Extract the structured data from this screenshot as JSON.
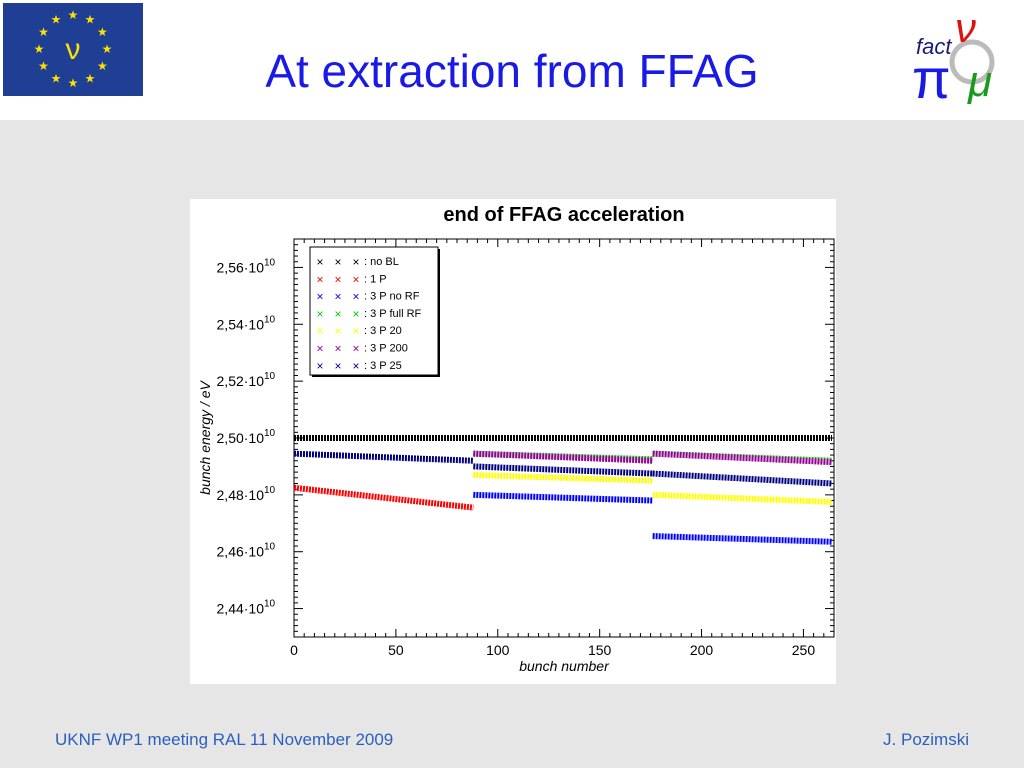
{
  "slide": {
    "title": "At extraction from FFAG",
    "footer_left": "UKNF WP1 meeting RAL 11 November 2009",
    "footer_right": "J. Pozimski"
  },
  "eu_logo": {
    "symbol": "ν",
    "colors": {
      "bg": "#1f3f95",
      "stars": "#ffe000"
    }
  },
  "fact_logo": {
    "text": "fact",
    "symbols": [
      "ν",
      "π",
      "μ"
    ],
    "colors": {
      "nu": "#e01010",
      "pi": "#1a1ae6",
      "mu": "#1a9a1a"
    }
  },
  "chart_data": {
    "type": "scatter",
    "title": "end of FFAG acceleration",
    "xlabel": "bunch number",
    "ylabel": "bunch energy / eV",
    "xlim": [
      0,
      265
    ],
    "ylim": [
      24300000000.0,
      25700000000.0
    ],
    "xticks": [
      0,
      50,
      100,
      150,
      200,
      250
    ],
    "xtick_labels": [
      "0",
      "50",
      "100",
      "150",
      "200",
      "250"
    ],
    "yticks": [
      24400000000.0,
      24600000000.0,
      24800000000.0,
      25000000000.0,
      25200000000.0,
      25400000000.0,
      25600000000.0
    ],
    "ytick_labels": [
      {
        "mant": "2,44·10",
        "exp": "10"
      },
      {
        "mant": "2,46·10",
        "exp": "10"
      },
      {
        "mant": "2,48·10",
        "exp": "10"
      },
      {
        "mant": "2,50·10",
        "exp": "10"
      },
      {
        "mant": "2,52·10",
        "exp": "10"
      },
      {
        "mant": "2,54·10",
        "exp": "10"
      },
      {
        "mant": "2,56·10",
        "exp": "10"
      }
    ],
    "legend_position": "top-left",
    "series": [
      {
        "name": ": no BL",
        "color": "#000000",
        "segments": [
          [
            0,
            264,
            25000000000.0,
            25000000000.0
          ]
        ]
      },
      {
        "name": ": 1 P",
        "color": "#ff0000",
        "segments": [
          [
            0,
            88,
            24825000000.0,
            24755000000.0
          ]
        ]
      },
      {
        "name": ": 3 P no RF",
        "color": "#0000ff",
        "segments": [
          [
            88,
            176,
            24800000000.0,
            24780000000.0
          ],
          [
            176,
            264,
            24655000000.0,
            24635000000.0
          ]
        ]
      },
      {
        "name": ": 3 P full RF",
        "color": "#00cc00",
        "segments": [
          [
            88,
            176,
            24945000000.0,
            24925000000.0
          ],
          [
            176,
            264,
            24945000000.0,
            24920000000.0
          ]
        ]
      },
      {
        "name": ": 3 P 20",
        "color": "#ffff00",
        "segments": [
          [
            88,
            176,
            24870000000.0,
            24850000000.0
          ],
          [
            176,
            264,
            24800000000.0,
            24775000000.0
          ]
        ]
      },
      {
        "name": ": 3 P 200",
        "color": "#990099",
        "segments": [
          [
            88,
            176,
            24945000000.0,
            24920000000.0
          ],
          [
            176,
            264,
            24945000000.0,
            24915000000.0
          ]
        ]
      },
      {
        "name": ": 3 P 25",
        "color": "#000080",
        "segments": [
          [
            0,
            88,
            24945000000.0,
            24920000000.0
          ],
          [
            88,
            176,
            24900000000.0,
            24875000000.0
          ],
          [
            176,
            264,
            24875000000.0,
            24840000000.0
          ]
        ]
      }
    ]
  }
}
